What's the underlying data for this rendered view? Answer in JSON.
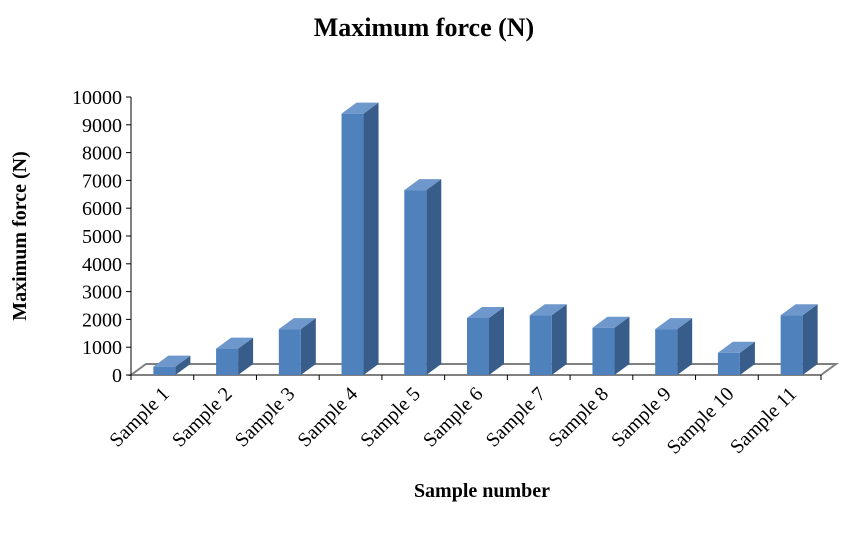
{
  "chart_data": {
    "type": "bar",
    "title": "Maximum force (N)",
    "xlabel": "Sample number",
    "ylabel": "Maximum force (N)",
    "categories": [
      "Sample 1",
      "Sample 2",
      "Sample 3",
      "Sample 4",
      "Sample 5",
      "Sample 6",
      "Sample 7",
      "Sample 8",
      "Sample 9",
      "Sample 10",
      "Sample 11"
    ],
    "values": [
      300,
      950,
      1650,
      9400,
      6650,
      2050,
      2150,
      1700,
      1650,
      800,
      2150
    ],
    "ylim": [
      0,
      10000
    ],
    "yticks": [
      0,
      1000,
      2000,
      3000,
      4000,
      5000,
      6000,
      7000,
      8000,
      9000,
      10000
    ],
    "grid": false,
    "legend": "none",
    "colors": {
      "bar_front": "#4F81BD",
      "bar_side": "#385D8A",
      "bar_top": "#6E98CC",
      "floor": "#808080"
    }
  }
}
